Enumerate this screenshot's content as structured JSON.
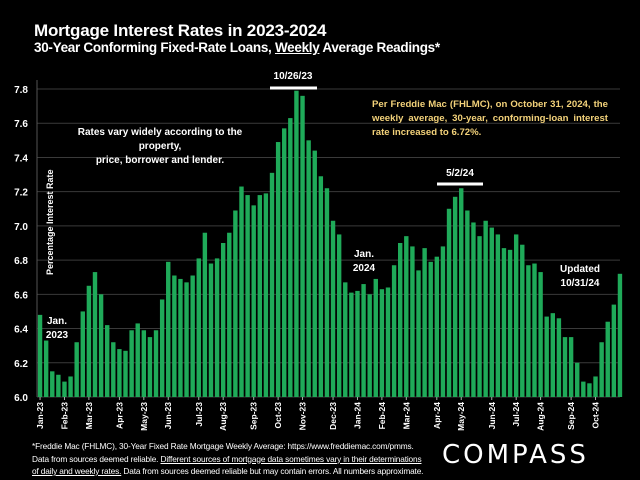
{
  "header": {
    "title": "Mortgage Interest Rates in 2023-2024",
    "subtitle_pre": "30-Year Conforming Fixed-Rate Loans, ",
    "subtitle_underlined": "Weekly",
    "subtitle_post": " Average Readings*"
  },
  "annotations": {
    "peak_2023": "10/26/23",
    "peak_2024": "5/2/24",
    "rates_vary": [
      "Rates vary widely according to the property,",
      "price, borrower and lender."
    ],
    "freddie_note": "Per Freddie Mac (FHLMC), on October 31, 2024, the weekly average, 30-year, conforming-loan interest rate increased to 6.72%.",
    "jan_2023": [
      "Jan.",
      "2023"
    ],
    "jan_2024": [
      "Jan.",
      "2024"
    ],
    "updated": [
      "Updated",
      "10/31/24"
    ]
  },
  "footer": {
    "line1": "*Freddie Mac (FHLMC), 30-Year Fixed Rate Mortgage Weekly Average:   https://www.freddiemac.com/pmms.",
    "line2_pre": "Data from sources deemed reliable. ",
    "line2_underlined": "Different sources of mortgage data sometimes vary in their determinations",
    "line3_underlined": "of daily and weekly rates.",
    "line3_post": " Data from sources deemed reliable but may contain errors. All numbers approximate."
  },
  "logo": "COMPASS",
  "colors": {
    "bar": "#1faa59",
    "bar_highlight": "#2dc46a",
    "grid": "#3a3a3a",
    "gold": "#f3d27a"
  },
  "chart_data": {
    "type": "bar",
    "title": "Mortgage Interest Rates in 2023-2024",
    "xlabel": "",
    "ylabel": "Percentage Interest Rate",
    "ylim": [
      6.0,
      7.85
    ],
    "yticks": [
      6.0,
      6.2,
      6.4,
      6.6,
      6.8,
      7.0,
      7.2,
      7.4,
      7.6,
      7.8
    ],
    "grid": true,
    "month_ticks": [
      "Jan-23",
      "Feb-23",
      "Mar-23",
      "Apr-23",
      "May-23",
      "Jun-23",
      "Jul-23",
      "Aug-23",
      "Sep-23",
      "Oct-23",
      "Nov-23",
      "Dec-23",
      "Jan-24",
      "Feb-24",
      "Mar-24",
      "Apr-24",
      "May-24",
      "Jun-24",
      "Jul-24",
      "Aug-24",
      "Sep-24",
      "Oct-24"
    ],
    "month_tick_week_index": [
      0,
      4,
      8,
      13,
      17,
      21,
      26,
      30,
      35,
      39,
      43,
      48,
      52,
      56,
      60,
      65,
      69,
      74,
      78,
      82,
      87,
      91
    ],
    "values": [
      6.48,
      6.33,
      6.15,
      6.13,
      6.09,
      6.12,
      6.32,
      6.5,
      6.65,
      6.73,
      6.6,
      6.42,
      6.32,
      6.28,
      6.27,
      6.39,
      6.43,
      6.39,
      6.35,
      6.39,
      6.57,
      6.79,
      6.71,
      6.69,
      6.67,
      6.71,
      6.81,
      6.96,
      6.78,
      6.81,
      6.9,
      6.96,
      7.09,
      7.23,
      7.18,
      7.12,
      7.18,
      7.19,
      7.31,
      7.49,
      7.57,
      7.63,
      7.79,
      7.76,
      7.5,
      7.44,
      7.29,
      7.22,
      7.03,
      6.95,
      6.67,
      6.61,
      6.62,
      6.66,
      6.6,
      6.69,
      6.63,
      6.64,
      6.77,
      6.9,
      6.94,
      6.88,
      6.74,
      6.87,
      6.79,
      6.82,
      6.88,
      7.1,
      7.17,
      7.22,
      7.09,
      7.02,
      6.94,
      7.03,
      6.99,
      6.95,
      6.87,
      6.86,
      6.95,
      6.89,
      6.77,
      6.78,
      6.73,
      6.47,
      6.49,
      6.46,
      6.35,
      6.35,
      6.2,
      6.09,
      6.08,
      6.12,
      6.32,
      6.44,
      6.54,
      6.72
    ]
  }
}
